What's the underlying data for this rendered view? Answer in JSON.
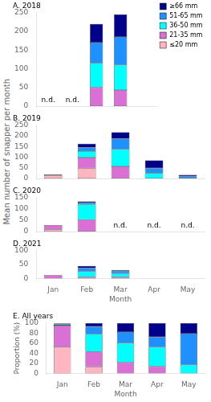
{
  "ylabel": "Mean number of snapper per month",
  "chart_data": [
    {
      "type": "bar",
      "title": "A. 2018",
      "categories": [
        "Jan",
        "Feb",
        "Mar",
        "Apr",
        "May"
      ],
      "series": [
        {
          "name": "≤20 mm",
          "color": "#FFB6C1",
          "values": [
            null,
            null,
            0,
            0,
            null
          ]
        },
        {
          "name": "21-35 mm",
          "color": "#DA70D6",
          "values": [
            null,
            null,
            50,
            43,
            null
          ]
        },
        {
          "name": "36-50 mm",
          "color": "#00FFFF",
          "values": [
            null,
            null,
            65,
            67,
            null
          ]
        },
        {
          "name": "51-65 mm",
          "color": "#1E90FF",
          "values": [
            null,
            null,
            55,
            75,
            null
          ]
        },
        {
          "name": "≥66 mm",
          "color": "#00008B",
          "values": [
            null,
            null,
            50,
            60,
            null
          ]
        }
      ],
      "stacked": true,
      "ylim": [
        0,
        250
      ],
      "yticks": [
        0,
        50,
        100,
        150,
        200,
        250
      ],
      "grid": false,
      "legend": "upper right",
      "tick_labels": "y",
      "annotations": [
        {
          "x": "Jan",
          "text": "n.d."
        },
        {
          "x": "Feb",
          "text": "n.d."
        }
      ]
    },
    {
      "type": "bar",
      "title": "B. 2019",
      "categories": [
        "Jan",
        "Feb",
        "Mar",
        "Apr",
        "May"
      ],
      "series": [
        {
          "name": "≤20 mm",
          "color": "#FFB6C1",
          "values": [
            15,
            48,
            0,
            0,
            0
          ]
        },
        {
          "name": "21-35 mm",
          "color": "#DA70D6",
          "values": [
            3,
            50,
            57,
            0,
            0
          ]
        },
        {
          "name": "36-50 mm",
          "color": "#00FFFF",
          "values": [
            0,
            30,
            80,
            25,
            0
          ]
        },
        {
          "name": "51-65 mm",
          "color": "#1E90FF",
          "values": [
            0,
            17,
            50,
            23,
            10
          ]
        },
        {
          "name": "≥66 mm",
          "color": "#00008B",
          "values": [
            0,
            18,
            30,
            37,
            7
          ]
        }
      ],
      "stacked": true,
      "ylim": [
        0,
        250
      ],
      "yticks": [
        0,
        50,
        100,
        150,
        200,
        250
      ],
      "grid": false,
      "tick_labels": "y"
    },
    {
      "type": "bar",
      "title": "C. 2020",
      "categories": [
        "Jan",
        "Feb",
        "Mar",
        "Apr",
        "May"
      ],
      "series": [
        {
          "name": "≤20 mm",
          "color": "#FFB6C1",
          "values": [
            8,
            0,
            null,
            null,
            null
          ]
        },
        {
          "name": "21-35 mm",
          "color": "#DA70D6",
          "values": [
            20,
            52,
            null,
            null,
            null
          ]
        },
        {
          "name": "36-50 mm",
          "color": "#00FFFF",
          "values": [
            0,
            68,
            null,
            null,
            null
          ]
        },
        {
          "name": "51-65 mm",
          "color": "#1E90FF",
          "values": [
            0,
            8,
            null,
            null,
            null
          ]
        },
        {
          "name": "≥66 mm",
          "color": "#00008B",
          "values": [
            0,
            5,
            null,
            null,
            null
          ]
        }
      ],
      "stacked": true,
      "ylim": [
        0,
        150
      ],
      "yticks": [
        0,
        50,
        100,
        150
      ],
      "grid": false,
      "tick_labels": "y",
      "annotations": [
        {
          "x": "Mar",
          "text": "n.d."
        },
        {
          "x": "Apr",
          "text": "n.d."
        },
        {
          "x": "May",
          "text": "n.d."
        }
      ]
    },
    {
      "type": "bar",
      "title": "D. 2021",
      "xlabel": "Month",
      "categories": [
        "Jan",
        "Feb",
        "Mar",
        "Apr",
        "May"
      ],
      "series": [
        {
          "name": "≤20 mm",
          "color": "#FFB6C1",
          "values": [
            0,
            0,
            0,
            null,
            null
          ]
        },
        {
          "name": "21-35 mm",
          "color": "#DA70D6",
          "values": [
            12,
            5,
            5,
            null,
            null
          ]
        },
        {
          "name": "36-50 mm",
          "color": "#00FFFF",
          "values": [
            0,
            20,
            13,
            null,
            null
          ]
        },
        {
          "name": "51-65 mm",
          "color": "#1E90FF",
          "values": [
            0,
            12,
            10,
            null,
            null
          ]
        },
        {
          "name": "≥66 mm",
          "color": "#00008B",
          "values": [
            0,
            8,
            3,
            null,
            null
          ]
        }
      ],
      "stacked": true,
      "ylim": [
        0,
        100
      ],
      "yticks": [
        0,
        50,
        100
      ],
      "grid": false
    },
    {
      "type": "bar",
      "title": "E. All years",
      "xlabel": "Month",
      "ylabel": "Proportion (%)",
      "categories": [
        "Jan",
        "Feb",
        "Mar",
        "Apr",
        "May"
      ],
      "series": [
        {
          "name": "≤20 mm",
          "color": "#FFB6C1",
          "values": [
            52,
            13,
            0,
            0,
            0
          ]
        },
        {
          "name": "21-35 mm",
          "color": "#DA70D6",
          "values": [
            43,
            30,
            22,
            14,
            0
          ]
        },
        {
          "name": "36-50 mm",
          "color": "#00FFFF",
          "values": [
            2,
            35,
            38,
            38,
            17
          ]
        },
        {
          "name": "51-65 mm",
          "color": "#1E90FF",
          "values": [
            2,
            15,
            22,
            20,
            62
          ]
        },
        {
          "name": "≥66 mm",
          "color": "#00008B",
          "values": [
            1,
            7,
            18,
            28,
            21
          ]
        }
      ],
      "stacked": true,
      "ylim": [
        0,
        100
      ],
      "yticks": [
        0,
        20,
        40,
        60,
        80,
        100
      ],
      "grid": false
    }
  ]
}
